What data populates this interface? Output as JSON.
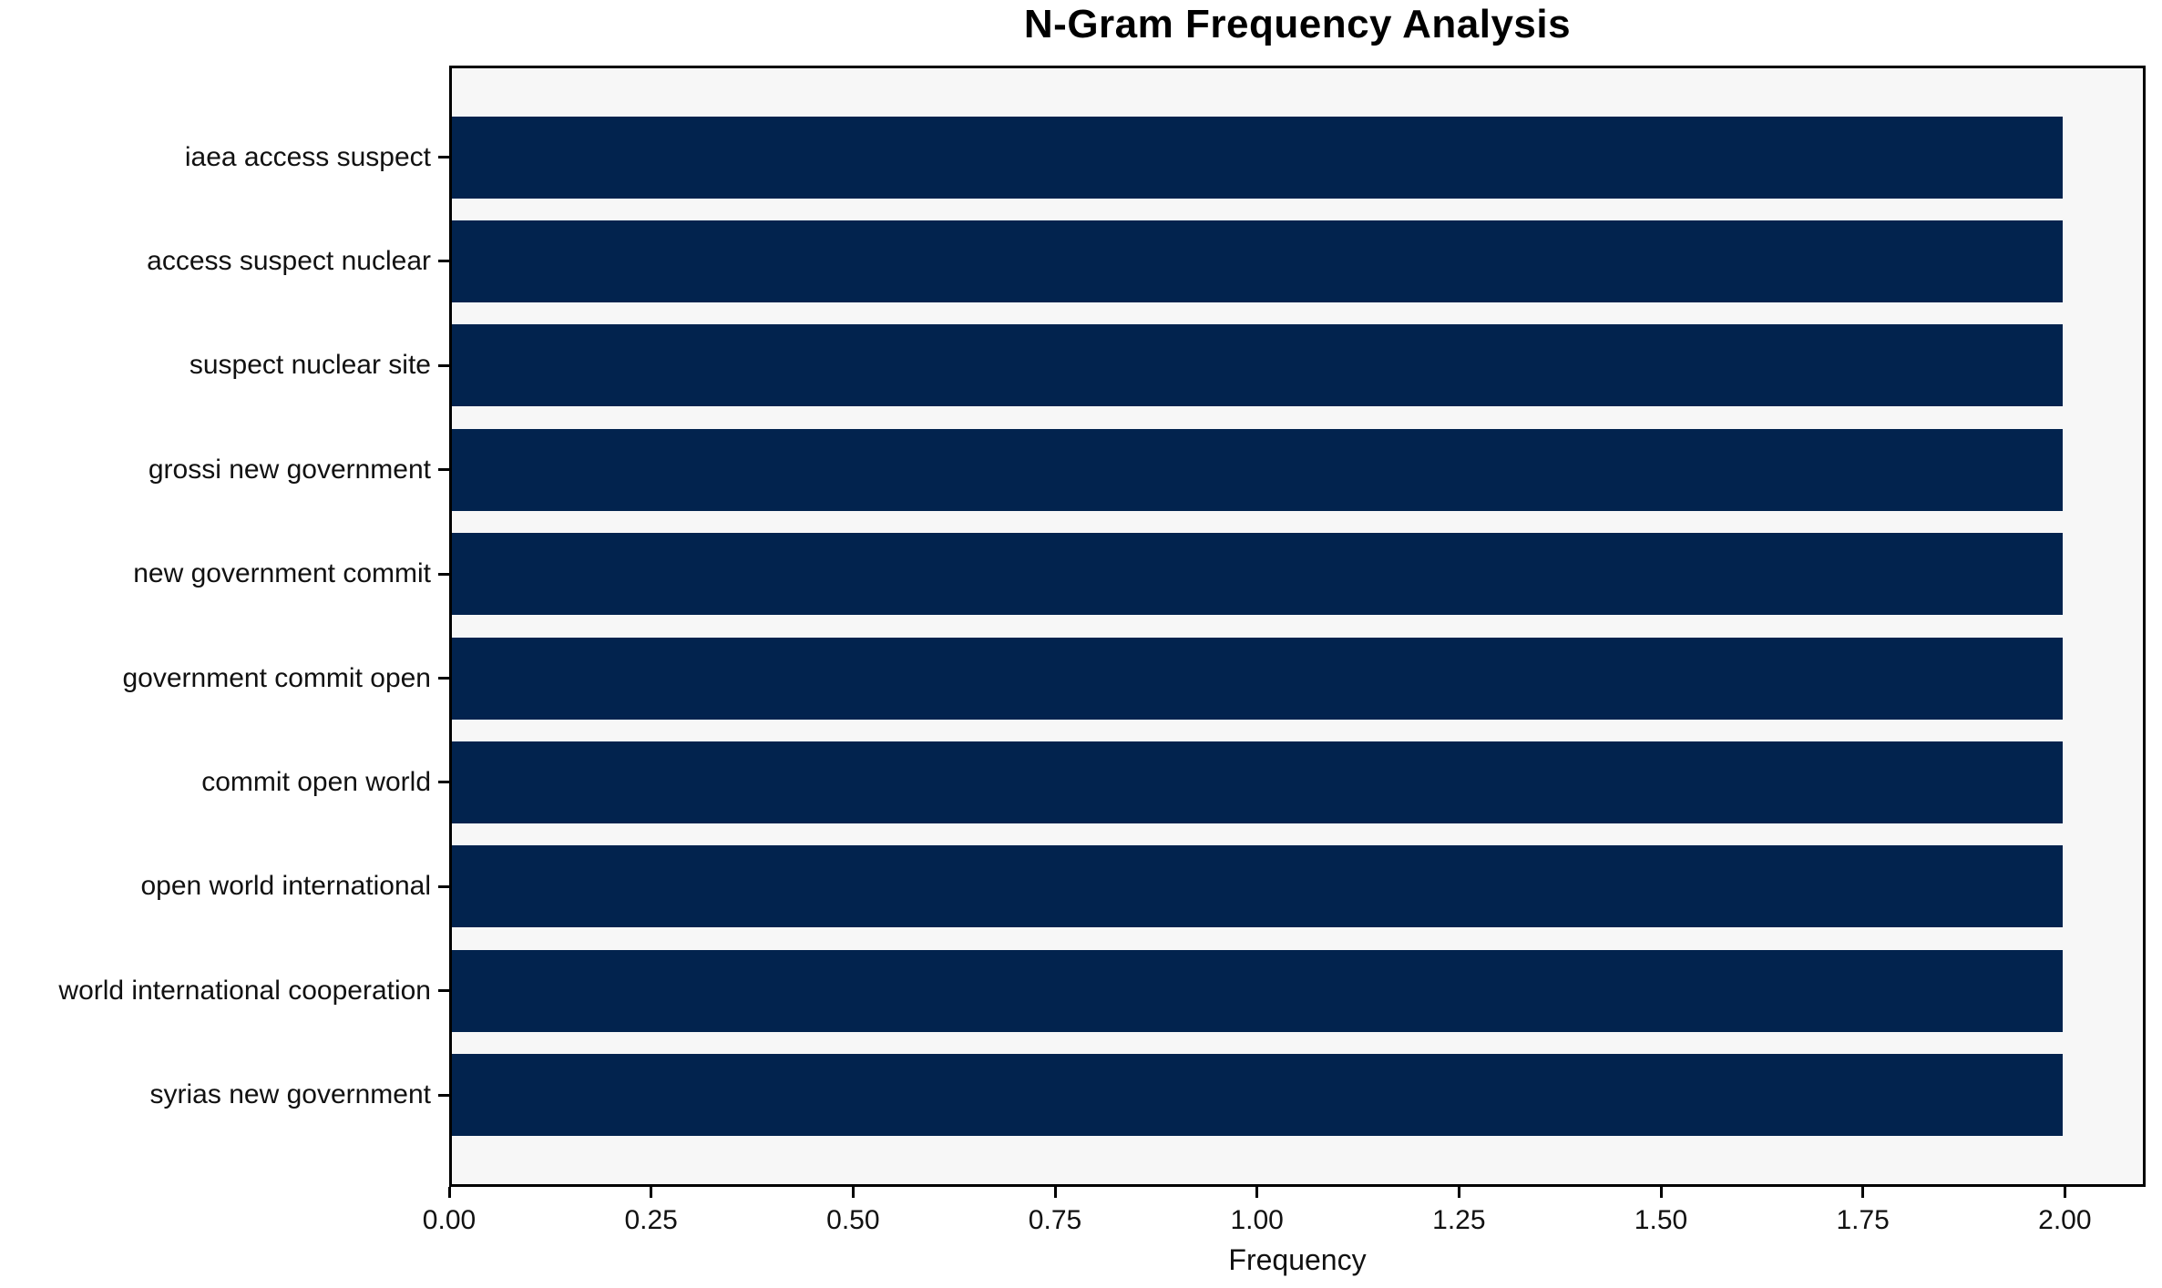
{
  "chart_data": {
    "type": "bar",
    "orientation": "horizontal",
    "title": "N-Gram Frequency Analysis",
    "categories": [
      "iaea access suspect",
      "access suspect nuclear",
      "suspect nuclear site",
      "grossi new government",
      "new government commit",
      "government commit open",
      "commit open world",
      "open world international",
      "world international cooperation",
      "syrias new government"
    ],
    "values": [
      2,
      2,
      2,
      2,
      2,
      2,
      2,
      2,
      2,
      2
    ],
    "xlabel": "Frequency",
    "ylabel": "",
    "xlim": [
      0,
      2.1
    ],
    "xticks": [
      0,
      0.25,
      0.5,
      0.75,
      1.0,
      1.25,
      1.5,
      1.75,
      2.0
    ],
    "xtick_labels": [
      "0.00",
      "0.25",
      "0.50",
      "0.75",
      "1.00",
      "1.25",
      "1.50",
      "1.75",
      "2.00"
    ],
    "grid": false,
    "legend": null,
    "colors": {
      "bar": "#02234e",
      "plot_background": "#f7f7f7",
      "figure_background": "#ffffff",
      "axis": "#000000",
      "text": "#111111"
    }
  }
}
